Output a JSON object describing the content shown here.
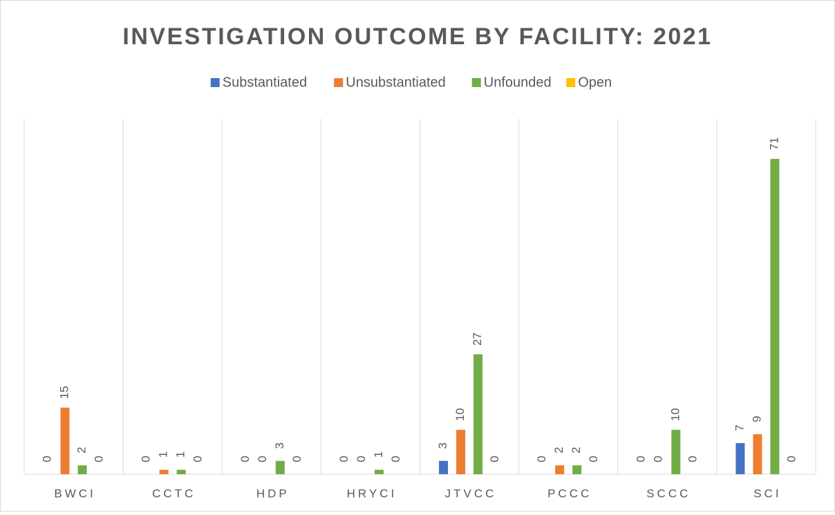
{
  "chart_data": {
    "type": "bar",
    "title": "INVESTIGATION OUTCOME BY FACILITY: 2021",
    "categories": [
      "BWCI",
      "CCTC",
      "HDP",
      "HRYCI",
      "JTVCC",
      "PCCC",
      "SCCC",
      "SCI"
    ],
    "series": [
      {
        "name": "Substantiated",
        "color": "#4472c4",
        "values": [
          0,
          0,
          0,
          0,
          3,
          0,
          0,
          7
        ]
      },
      {
        "name": "Unsubstantiated",
        "color": "#ed7d31",
        "values": [
          15,
          1,
          0,
          0,
          10,
          2,
          0,
          9
        ]
      },
      {
        "name": "Unfounded",
        "color": "#70ad47",
        "values": [
          2,
          1,
          3,
          1,
          27,
          2,
          10,
          71
        ]
      },
      {
        "name": "Open",
        "color": "#ffc000",
        "values": [
          0,
          0,
          0,
          0,
          0,
          0,
          0,
          0
        ]
      }
    ],
    "ylim": [
      0,
      80
    ],
    "legend": "top"
  }
}
